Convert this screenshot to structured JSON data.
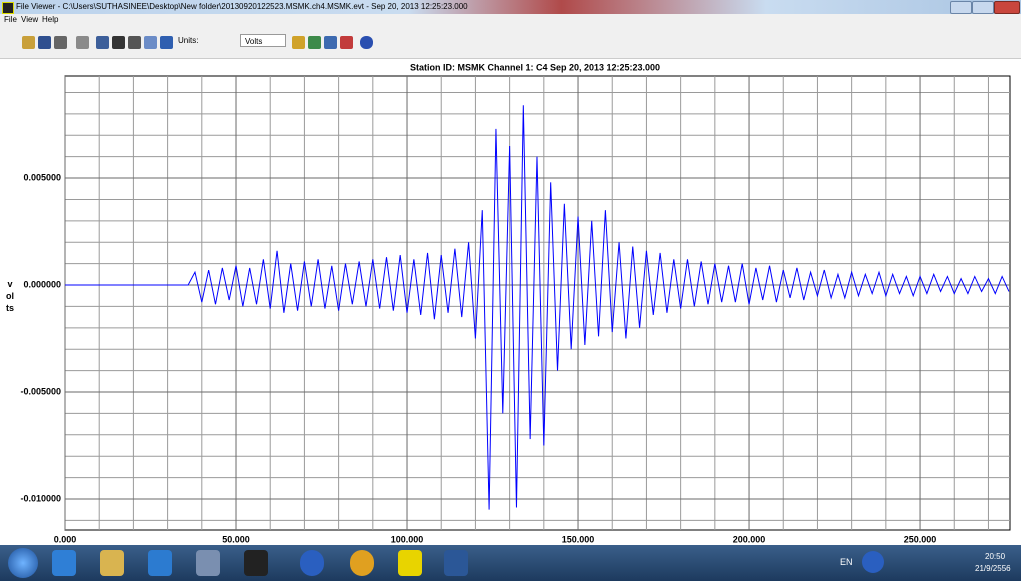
{
  "window": {
    "title": "File Viewer - C:\\Users\\SUTHASINEE\\Desktop\\New folder\\20130920122523.MSMK.ch4.MSMK.evt - Sep 20, 2013  12:25:23.000"
  },
  "menu": [
    "File",
    "View",
    "Help"
  ],
  "toolbar": {
    "units_label": "Units:",
    "units_value": "Volts"
  },
  "taskbar": {
    "language": "EN",
    "time": "20:50",
    "date": "21/9/2556"
  },
  "chart_data": {
    "type": "line",
    "title": "Station ID: MSMK  Channel 1: C4  Sep 20, 2013  12:25:23.000",
    "y_label": "volts",
    "x": [
      0,
      2,
      4,
      6,
      8,
      10,
      12,
      14,
      16,
      18,
      20,
      22,
      24,
      26,
      28,
      30,
      32,
      34,
      36,
      38,
      40,
      42,
      44,
      46,
      48,
      50,
      52,
      54,
      56,
      58,
      60,
      62,
      64,
      66,
      68,
      70,
      72,
      74,
      76,
      78,
      80,
      82,
      84,
      86,
      88,
      90,
      92,
      94,
      96,
      98,
      100,
      102,
      104,
      106,
      108,
      110,
      112,
      114,
      116,
      118,
      120,
      122,
      124,
      126,
      128,
      130,
      132,
      134,
      136,
      138,
      140,
      142,
      144,
      146,
      148,
      150,
      152,
      154,
      156,
      158,
      160,
      162,
      164,
      166,
      168,
      170,
      172,
      174,
      176,
      178,
      180,
      182,
      184,
      186,
      188,
      190,
      192,
      194,
      196,
      198,
      200,
      202,
      204,
      206,
      208,
      210,
      212,
      214,
      216,
      218,
      220,
      222,
      224,
      226,
      228,
      230,
      232,
      234,
      236,
      238,
      240,
      242,
      244,
      246,
      248,
      250,
      252,
      254,
      256,
      258,
      260,
      262,
      264,
      266,
      268,
      270,
      272,
      274,
      276
    ],
    "series": [
      {
        "color": "#0000ff",
        "values": [
          0,
          0,
          0,
          0,
          0,
          0,
          0,
          0,
          0,
          0,
          0,
          0,
          0,
          0,
          0,
          0,
          0,
          0,
          0,
          0.0006,
          -0.0008,
          0.0007,
          -0.0009,
          0.0008,
          -0.0007,
          0.0009,
          -0.001,
          0.0008,
          -0.0009,
          0.0012,
          -0.0011,
          0.0016,
          -0.0013,
          0.001,
          -0.0012,
          0.0011,
          -0.001,
          0.0012,
          -0.0011,
          0.0009,
          -0.0012,
          0.001,
          -0.0009,
          0.0011,
          -0.001,
          0.0012,
          -0.0011,
          0.0013,
          -0.0012,
          0.0014,
          -0.0013,
          0.0012,
          -0.0014,
          0.0015,
          -0.0016,
          0.0014,
          -0.0013,
          0.0017,
          -0.0015,
          0.002,
          -0.0025,
          0.0035,
          -0.0105,
          0.0073,
          -0.006,
          0.0065,
          -0.0104,
          0.0084,
          -0.0072,
          0.006,
          -0.0075,
          0.0048,
          -0.004,
          0.0038,
          -0.003,
          0.0032,
          -0.0028,
          0.003,
          -0.0024,
          0.0035,
          -0.0022,
          0.002,
          -0.0025,
          0.0018,
          -0.002,
          0.0016,
          -0.0014,
          0.0015,
          -0.0013,
          0.0012,
          -0.0011,
          0.0012,
          -0.001,
          0.0011,
          -0.0009,
          0.001,
          -0.0008,
          0.0009,
          -0.0008,
          0.001,
          -0.0009,
          0.0008,
          -0.0007,
          0.0009,
          -0.0008,
          0.0007,
          -0.0006,
          0.0008,
          -0.0007,
          0.0006,
          -0.0005,
          0.0007,
          -0.0006,
          0.0005,
          -0.0006,
          0.0006,
          -0.0005,
          0.0005,
          -0.0004,
          0.0006,
          -0.0005,
          0.0005,
          -0.0004,
          0.0004,
          -0.0005,
          0.0004,
          -0.0004,
          0.0005,
          -0.0003,
          0.0004,
          -0.0004,
          0.0003,
          -0.0004,
          0.0004,
          -0.0003,
          0.0003,
          -0.0004,
          0.0004,
          -0.0003
        ]
      }
    ],
    "xlim": [
      0,
      276.3
    ],
    "ylim": [
      -0.01145,
      0.00977
    ],
    "xticks": [
      {
        "value": 0,
        "label": "0.000"
      },
      {
        "value": 50,
        "label": "50.000"
      },
      {
        "value": 100,
        "label": "100.000"
      },
      {
        "value": 150,
        "label": "150.000"
      },
      {
        "value": 200,
        "label": "200.000"
      },
      {
        "value": 250,
        "label": "250.000"
      }
    ],
    "yticks": [
      {
        "value": -0.01,
        "label": "-0.010000"
      },
      {
        "value": -0.005,
        "label": "-0.005000"
      },
      {
        "value": 0,
        "label": "0.000000"
      },
      {
        "value": 0.005,
        "label": "0.005000"
      }
    ],
    "x_minor_ticks": [
      10,
      20,
      30,
      40,
      60,
      70,
      80,
      90,
      110,
      120,
      130,
      140,
      160,
      170,
      180,
      190,
      210,
      220,
      230,
      240,
      260,
      270
    ],
    "y_minor_ticks": [
      -0.011,
      -0.009,
      -0.008,
      -0.007,
      -0.006,
      -0.004,
      -0.003,
      -0.002,
      -0.001,
      0.001,
      0.002,
      0.003,
      0.004,
      0.006,
      0.007,
      0.008,
      0.009
    ],
    "grid": true
  }
}
